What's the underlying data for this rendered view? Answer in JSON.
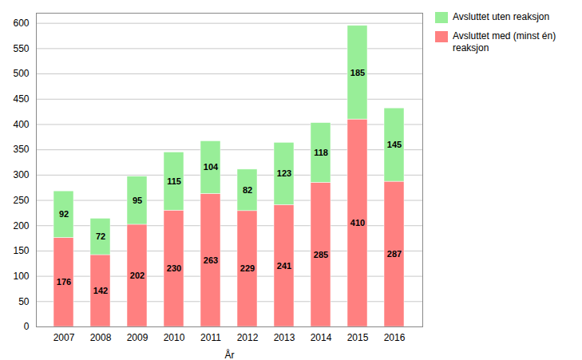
{
  "chart_data": {
    "type": "bar",
    "stacked": true,
    "data_labels": true,
    "xlabel": "År",
    "categories": [
      "2007",
      "2008",
      "2009",
      "2010",
      "2011",
      "2012",
      "2013",
      "2014",
      "2015",
      "2016"
    ],
    "series": [
      {
        "name": "Avsluttet med (minst én)\nreaksjon",
        "color": "#FF8080",
        "values": [
          176,
          142,
          202,
          230,
          263,
          229,
          241,
          285,
          410,
          287
        ]
      },
      {
        "name": "Avsluttet uten reaksjon",
        "color": "#98EE98",
        "values": [
          92,
          72,
          95,
          115,
          104,
          82,
          123,
          118,
          185,
          145
        ]
      }
    ],
    "ylim": [
      0,
      620
    ],
    "yticks": [
      0,
      50,
      100,
      150,
      200,
      250,
      300,
      350,
      400,
      450,
      500,
      550,
      600
    ],
    "grid": true,
    "legend": "upper right"
  }
}
